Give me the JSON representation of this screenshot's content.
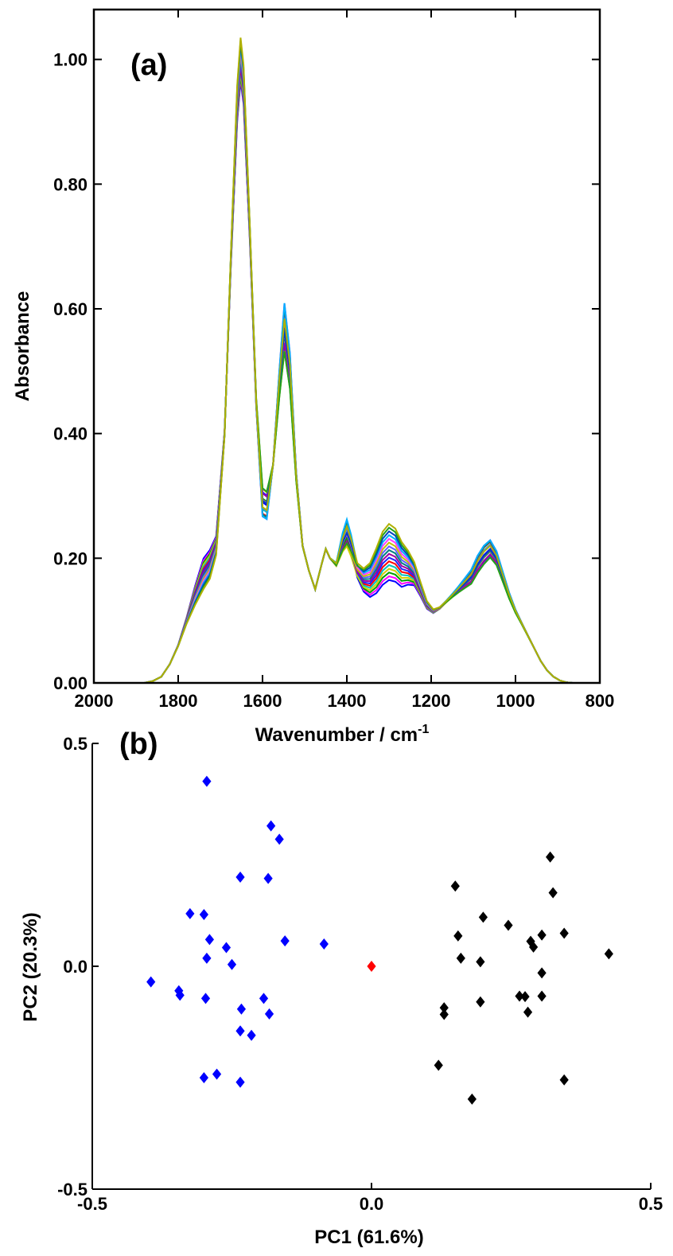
{
  "chart_data": [
    {
      "type": "line",
      "panel_label": "(a)",
      "xlabel": "Wavenumber / cm",
      "xlabel_superscript": "-1",
      "ylabel": "Absorbance",
      "xlim": [
        2000,
        800
      ],
      "ylim": [
        0.0,
        1.08
      ],
      "x_reversed": true,
      "x_ticks": [
        2000,
        1800,
        1600,
        1400,
        1200,
        1000,
        800
      ],
      "x_tick_labels": [
        "2000",
        "1800",
        "1600",
        "1400",
        "1200",
        "1000",
        "800"
      ],
      "y_ticks": [
        0.0,
        0.2,
        0.4,
        0.6,
        0.8,
        1.0
      ],
      "y_tick_labels": [
        "0.00",
        "0.20",
        "0.40",
        "0.60",
        "0.80",
        "1.00"
      ],
      "grid": false,
      "legend": "none",
      "base_spectrum": {
        "x": [
          1880,
          1860,
          1840,
          1820,
          1800,
          1780,
          1760,
          1740,
          1725,
          1710,
          1690,
          1675,
          1660,
          1652,
          1645,
          1630,
          1615,
          1600,
          1590,
          1575,
          1560,
          1548,
          1535,
          1520,
          1505,
          1490,
          1475,
          1460,
          1450,
          1440,
          1425,
          1410,
          1400,
          1390,
          1375,
          1360,
          1345,
          1330,
          1315,
          1300,
          1285,
          1270,
          1255,
          1240,
          1225,
          1210,
          1195,
          1180,
          1165,
          1150,
          1135,
          1120,
          1105,
          1090,
          1075,
          1060,
          1045,
          1030,
          1015,
          1000,
          985,
          970,
          955,
          940,
          925,
          910,
          895,
          880,
          865
        ],
        "y": [
          0.0,
          0.003,
          0.01,
          0.03,
          0.06,
          0.1,
          0.14,
          0.175,
          0.19,
          0.22,
          0.4,
          0.68,
          0.93,
          1.0,
          0.96,
          0.72,
          0.45,
          0.29,
          0.285,
          0.35,
          0.48,
          0.57,
          0.5,
          0.33,
          0.22,
          0.18,
          0.15,
          0.19,
          0.215,
          0.2,
          0.19,
          0.225,
          0.24,
          0.22,
          0.18,
          0.165,
          0.165,
          0.18,
          0.2,
          0.21,
          0.205,
          0.19,
          0.185,
          0.175,
          0.15,
          0.125,
          0.115,
          0.12,
          0.13,
          0.14,
          0.15,
          0.16,
          0.17,
          0.19,
          0.205,
          0.215,
          0.2,
          0.17,
          0.14,
          0.115,
          0.095,
          0.075,
          0.055,
          0.035,
          0.02,
          0.01,
          0.004,
          0.001,
          0.0
        ]
      },
      "series_colors": [
        "#0000ff",
        "#ff00ff",
        "#00a000",
        "#d0d000",
        "#00c0c0",
        "#ff0000",
        "#2020ff",
        "#a000a0",
        "#008080",
        "#6060ff",
        "#c0c000",
        "#ff40ff",
        "#00b0ff",
        "#0040c0",
        "#20a020",
        "#b0b000"
      ]
    },
    {
      "type": "scatter",
      "panel_label": "(b)",
      "xlabel": "PC1  (61.6%)",
      "ylabel": "PC2  (20.3%)",
      "xlim": [
        -0.5,
        0.5
      ],
      "ylim": [
        -0.5,
        0.5
      ],
      "x_ticks": [
        -0.5,
        0.0,
        0.5
      ],
      "x_tick_labels": [
        "-0.5",
        "0.0",
        "0.5"
      ],
      "y_ticks": [
        -0.5,
        0.0,
        0.5
      ],
      "y_tick_labels": [
        "-0.5",
        "0.0",
        "0.5"
      ],
      "grid": false,
      "legend": "none",
      "marker": "diamond",
      "series": [
        {
          "color": "#0000ff",
          "points": [
            [
              -0.295,
              0.415
            ],
            [
              -0.18,
              0.315
            ],
            [
              -0.165,
              0.285
            ],
            [
              -0.235,
              0.2
            ],
            [
              -0.185,
              0.197
            ],
            [
              -0.325,
              0.118
            ],
            [
              -0.3,
              0.116
            ],
            [
              -0.29,
              0.06
            ],
            [
              -0.26,
              0.042
            ],
            [
              -0.155,
              0.057
            ],
            [
              -0.085,
              0.05
            ],
            [
              -0.295,
              0.018
            ],
            [
              -0.25,
              0.004
            ],
            [
              -0.395,
              -0.035
            ],
            [
              -0.345,
              -0.055
            ],
            [
              -0.343,
              -0.065
            ],
            [
              -0.297,
              -0.072
            ],
            [
              -0.193,
              -0.072
            ],
            [
              -0.233,
              -0.096
            ],
            [
              -0.183,
              -0.107
            ],
            [
              -0.235,
              -0.145
            ],
            [
              -0.215,
              -0.155
            ],
            [
              -0.277,
              -0.242
            ],
            [
              -0.3,
              -0.25
            ],
            [
              -0.235,
              -0.26
            ]
          ]
        },
        {
          "color": "#ff0000",
          "points": [
            [
              0.0,
              0.0
            ]
          ]
        },
        {
          "color": "#000000",
          "points": [
            [
              0.32,
              0.245
            ],
            [
              0.15,
              0.18
            ],
            [
              0.325,
              0.165
            ],
            [
              0.2,
              0.11
            ],
            [
              0.245,
              0.092
            ],
            [
              0.155,
              0.068
            ],
            [
              0.345,
              0.074
            ],
            [
              0.305,
              0.07
            ],
            [
              0.285,
              0.056
            ],
            [
              0.29,
              0.043
            ],
            [
              0.425,
              0.028
            ],
            [
              0.16,
              0.018
            ],
            [
              0.195,
              0.01
            ],
            [
              0.305,
              -0.015
            ],
            [
              0.265,
              -0.067
            ],
            [
              0.275,
              -0.068
            ],
            [
              0.305,
              -0.067
            ],
            [
              0.195,
              -0.08
            ],
            [
              0.28,
              -0.103
            ],
            [
              0.13,
              -0.093
            ],
            [
              0.13,
              -0.108
            ],
            [
              0.12,
              -0.222
            ],
            [
              0.345,
              -0.255
            ],
            [
              0.18,
              -0.298
            ]
          ]
        }
      ]
    }
  ]
}
